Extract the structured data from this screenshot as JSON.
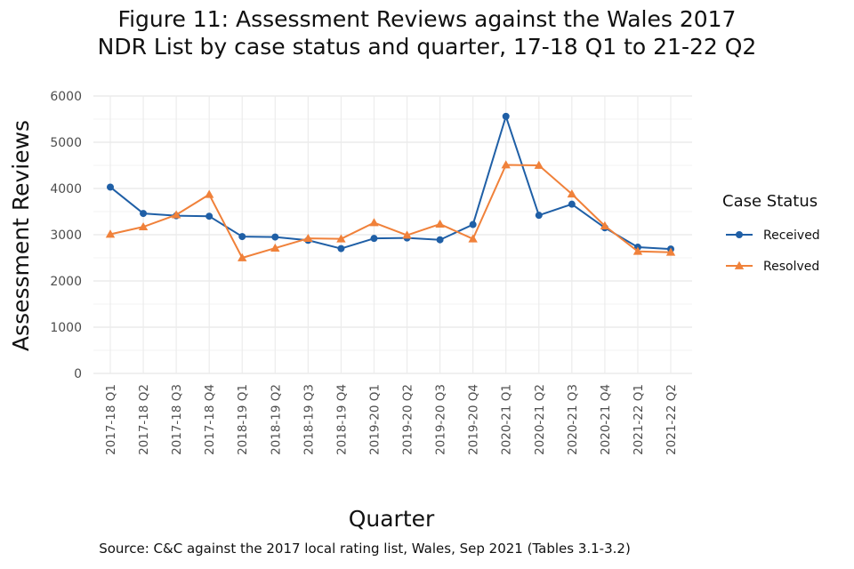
{
  "title": {
    "line1": "Figure 11: Assessment Reviews against the Wales 2017",
    "line2": "NDR List by case status and quarter, 17-18 Q1 to 21-22 Q2"
  },
  "source": "Source: C&C against the 2017 local rating list, Wales, Sep 2021 (Tables 3.1-3.2)",
  "chart_data": {
    "type": "line",
    "title": "Figure 11: Assessment Reviews against the Wales 2017 NDR List by case status and quarter, 17-18 Q1 to 21-22 Q2",
    "xlabel": "Quarter",
    "ylabel": "Assessment Reviews",
    "ylim": [
      0,
      6000
    ],
    "yticks": [
      0,
      1000,
      2000,
      3000,
      4000,
      5000,
      6000
    ],
    "grid": true,
    "legend_title": "Case Status",
    "legend_position": "right",
    "categories": [
      "2017-18 Q1",
      "2017-18 Q2",
      "2017-18 Q3",
      "2017-18 Q4",
      "2018-19 Q1",
      "2018-19 Q2",
      "2018-19 Q3",
      "2018-19 Q4",
      "2019-20 Q1",
      "2019-20 Q2",
      "2019-20 Q3",
      "2019-20 Q4",
      "2020-21 Q1",
      "2020-21 Q2",
      "2020-21 Q3",
      "2020-21 Q4",
      "2021-22 Q1",
      "2021-22 Q2"
    ],
    "series": [
      {
        "name": "Received",
        "color": "#1f5fa6",
        "marker": "circle",
        "values": [
          4030,
          3460,
          3410,
          3400,
          2960,
          2950,
          2880,
          2700,
          2920,
          2930,
          2890,
          3220,
          5560,
          3420,
          3660,
          3150,
          2730,
          2690
        ]
      },
      {
        "name": "Resolved",
        "color": "#f0813a",
        "marker": "triangle",
        "values": [
          3010,
          3170,
          3430,
          3870,
          2500,
          2710,
          2920,
          2910,
          3260,
          2990,
          3230,
          2910,
          4510,
          4500,
          3880,
          3190,
          2640,
          2620
        ]
      }
    ]
  }
}
